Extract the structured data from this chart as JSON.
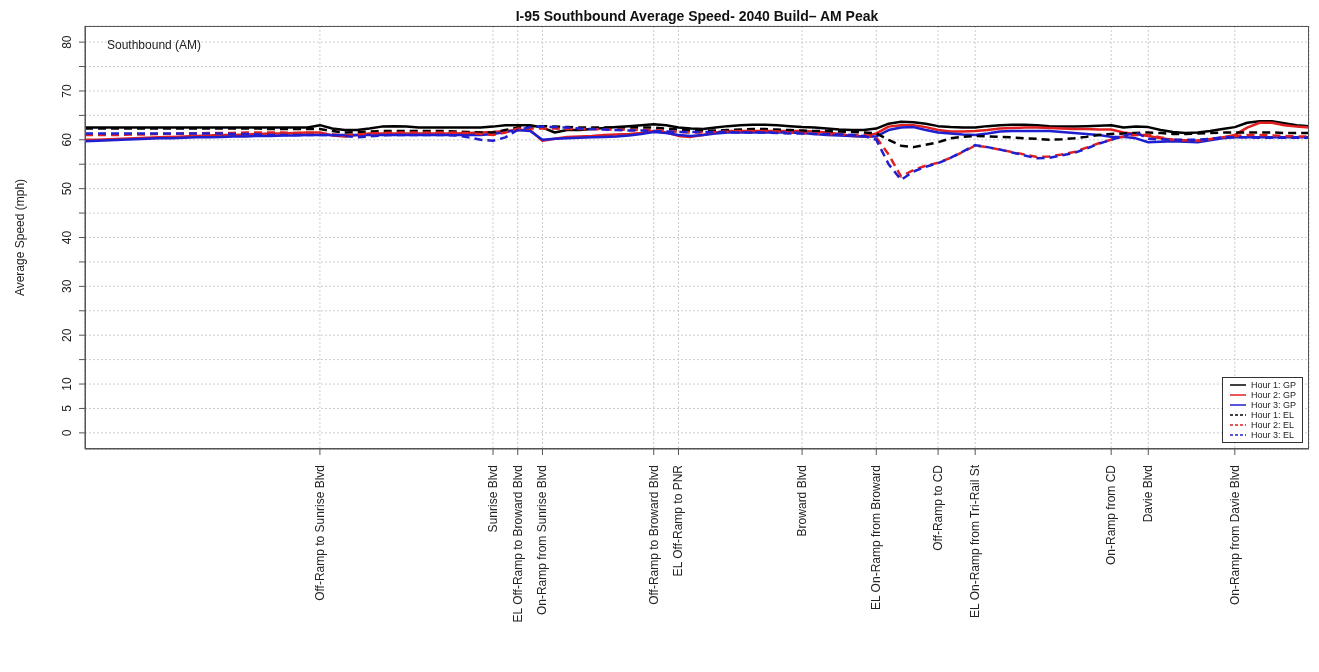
{
  "chart_data": {
    "type": "line",
    "title": "I-95 Southbound Average Speed- 2040 Build– AM Peak",
    "ylabel": "Average Speed (mph)",
    "annotations": [
      "Southbound (AM)"
    ],
    "categories": [
      null,
      null,
      null,
      null,
      null,
      null,
      null,
      null,
      null,
      null,
      null,
      null,
      null,
      null,
      null,
      null,
      null,
      null,
      null,
      "Off-Ramp to Sunrise Blvd",
      null,
      null,
      null,
      null,
      null,
      null,
      null,
      null,
      null,
      null,
      null,
      null,
      null,
      "Sunrise Blvd",
      null,
      "EL Off-Ramp to Broward Blvd",
      null,
      "On-Ramp from Sunrise Blvd",
      null,
      null,
      null,
      null,
      null,
      null,
      null,
      null,
      "Off-Ramp to Broward Blvd",
      null,
      "EL Off-Ramp to PNR",
      null,
      null,
      null,
      null,
      null,
      null,
      null,
      null,
      null,
      "Broward Blvd",
      null,
      null,
      null,
      null,
      null,
      "EL On-Ramp from Broward",
      null,
      null,
      null,
      null,
      "Off-Ramp to CD",
      null,
      null,
      "EL On-Ramp from Tri-Rail St",
      null,
      null,
      null,
      null,
      null,
      null,
      null,
      null,
      null,
      null,
      "On-Ramp from CD",
      null,
      null,
      "Davie Blvd",
      null,
      null,
      null,
      null,
      null,
      null,
      "On-Ramp from Davie Blvd",
      null,
      null,
      null,
      null,
      null,
      null
    ],
    "series": [
      {
        "name": "Hour 1: GP",
        "color": "#000000",
        "line_style": "solid",
        "values": [
          62.5,
          62.5,
          62.5,
          62.5,
          62.5,
          62.5,
          62.5,
          62.5,
          62.5,
          62.5,
          62.5,
          62.5,
          62.5,
          62.5,
          62.5,
          62.5,
          62.5,
          62.5,
          62.5,
          63,
          62.3,
          62,
          62,
          62.3,
          62.7,
          62.8,
          62.7,
          62.5,
          62.5,
          62.5,
          62.5,
          62.5,
          62.5,
          62.7,
          63,
          63,
          63,
          62.5,
          61.5,
          62,
          62,
          62.2,
          62.4,
          62.6,
          62.8,
          63,
          63.2,
          63,
          62.5,
          62.3,
          62.2,
          62.5,
          62.8,
          63,
          63.1,
          63.1,
          63,
          62.8,
          62.6,
          62.5,
          62.3,
          62.1,
          62,
          62,
          62.3,
          63.3,
          63.7,
          63.6,
          63.3,
          62.8,
          62.6,
          62.5,
          62.5,
          62.8,
          63,
          63.1,
          63.1,
          63,
          62.8,
          62.7,
          62.7,
          62.8,
          62.9,
          63,
          62.5,
          62.7,
          62.6,
          62,
          61.6,
          61.4,
          61.5,
          61.8,
          62.2,
          62.6,
          63.5,
          63.8,
          63.8,
          63.4,
          63,
          62.8
        ]
      },
      {
        "name": "Hour 2: GP",
        "color": "#e02020",
        "line_style": "solid",
        "values": [
          60,
          60,
          60.1,
          60.2,
          60.3,
          60.4,
          60.5,
          60.6,
          60.7,
          60.8,
          60.9,
          61,
          61,
          61.1,
          61.2,
          61.3,
          61.3,
          61.4,
          61.5,
          61.5,
          60.9,
          60.7,
          61,
          61.3,
          61.3,
          61.3,
          61.3,
          61.3,
          61.3,
          61.3,
          61.3,
          61.4,
          61.5,
          61.6,
          61.8,
          62,
          62,
          59.8,
          60.2,
          60.6,
          60.7,
          60.8,
          61,
          61.1,
          61.2,
          61.4,
          61.8,
          61.5,
          60.8,
          60.6,
          61,
          61.5,
          61.8,
          61.8,
          61.8,
          61.8,
          61.8,
          61.8,
          61.8,
          61.7,
          61.5,
          61.2,
          60.8,
          60.7,
          61.3,
          62.7,
          63,
          63,
          62.6,
          62,
          61.7,
          61.7,
          61.8,
          62,
          62.3,
          62.4,
          62.5,
          62.5,
          62.4,
          62.3,
          62.2,
          62.2,
          62.1,
          62.1,
          61.5,
          61.2,
          60.8,
          60.3,
          60,
          59.9,
          59.8,
          60.1,
          60.5,
          61,
          62.5,
          63.5,
          63.5,
          63,
          62.7,
          62.5
        ]
      },
      {
        "name": "Hour 3: GP",
        "color": "#1f1fd0",
        "line_style": "solid",
        "values": [
          59.7,
          59.8,
          59.9,
          60,
          60.1,
          60.2,
          60.3,
          60.3,
          60.4,
          60.5,
          60.5,
          60.6,
          60.7,
          60.7,
          60.8,
          60.8,
          60.9,
          60.9,
          61,
          61,
          61,
          61,
          61,
          61,
          61,
          61,
          61,
          61,
          61,
          61,
          61,
          61,
          61,
          61.2,
          61.6,
          62,
          61.8,
          60,
          60.2,
          60.3,
          60.4,
          60.5,
          60.6,
          60.7,
          60.9,
          61.2,
          61.6,
          61.4,
          61,
          60.8,
          61,
          61.3,
          61.5,
          61.5,
          61.5,
          61.5,
          61.5,
          61.5,
          61.4,
          61.2,
          61,
          60.9,
          60.8,
          60.7,
          60.7,
          62,
          62.5,
          62.6,
          62,
          61.5,
          61.3,
          61.1,
          61,
          61.3,
          61.7,
          61.8,
          61.8,
          61.8,
          61.8,
          61.6,
          61.4,
          61.2,
          61,
          60.6,
          60.6,
          60.3,
          59.5,
          59.6,
          59.7,
          59.6,
          59.5,
          59.9,
          60.3,
          60.5,
          60.5,
          60.5,
          60.5,
          60.5,
          60.5,
          60.5
        ]
      },
      {
        "name": "Hour 1: EL",
        "color": "#000000",
        "line_style": "dashed",
        "values": [
          62.3,
          62.3,
          62.3,
          62.3,
          62.3,
          62.3,
          62.3,
          62.3,
          62.3,
          62.3,
          62.3,
          62.3,
          62.3,
          62.3,
          62.3,
          62.2,
          62.2,
          62.2,
          62.2,
          62.2,
          61.8,
          61.5,
          61.6,
          61.7,
          61.8,
          61.8,
          61.8,
          61.8,
          61.8,
          61.8,
          61.7,
          61.6,
          61.5,
          61.5,
          62,
          62.5,
          62.7,
          62.8,
          62.7,
          62.6,
          62.5,
          62.5,
          62.5,
          62.5,
          62.5,
          62.5,
          62.5,
          62.3,
          62.1,
          61.9,
          61.8,
          61.9,
          62,
          62.1,
          62.2,
          62.2,
          62.1,
          62,
          61.9,
          61.8,
          61.8,
          61.7,
          61.6,
          61.5,
          61.3,
          60,
          58.8,
          58.5,
          59,
          59.5,
          60.3,
          60.6,
          60.8,
          60.7,
          60.6,
          60.5,
          60.3,
          60.2,
          60,
          60.1,
          60.3,
          60.6,
          61,
          61.2,
          61.3,
          61.4,
          61.5,
          61.4,
          61.2,
          61.2,
          61.3,
          61.4,
          61.5,
          61.5,
          61.5,
          61.5,
          61.5,
          61.4,
          61.4,
          61.4
        ]
      },
      {
        "name": "Hour 2: EL",
        "color": "#e02020",
        "line_style": "dashed",
        "values": [
          61,
          61,
          61,
          61,
          61.1,
          61.1,
          61.2,
          61.2,
          61.3,
          61.3,
          61.4,
          61.4,
          61.4,
          61.5,
          61.5,
          61.5,
          61.5,
          61.4,
          61.4,
          61.3,
          61.1,
          60.9,
          61.1,
          61.3,
          61.4,
          61.5,
          61.5,
          61.5,
          61.5,
          61.5,
          61.5,
          61.4,
          61.2,
          61,
          61.5,
          62.3,
          62.3,
          62.3,
          62.3,
          62.2,
          62.2,
          62.2,
          62.1,
          62.1,
          62,
          62,
          62,
          61.8,
          61.6,
          61.5,
          61.5,
          61.6,
          61.7,
          61.8,
          61.8,
          61.8,
          61.7,
          61.5,
          61.4,
          61.3,
          61.2,
          61.1,
          61,
          61,
          60.5,
          57,
          52.5,
          53.8,
          54.7,
          55.3,
          56.3,
          57.5,
          58.8,
          58.5,
          58,
          57.5,
          57,
          56.5,
          56.6,
          57,
          57.5,
          58.4,
          59.3,
          60,
          60.7,
          61,
          61,
          60.5,
          60,
          59.9,
          59.8,
          60.1,
          60.5,
          60.8,
          61,
          61,
          60.9,
          60.8,
          60.7,
          60.7
        ]
      },
      {
        "name": "Hour 3: EL",
        "color": "#1f1fd0",
        "line_style": "dashed",
        "values": [
          61.3,
          61.3,
          61.3,
          61.3,
          61.3,
          61.3,
          61.3,
          61.3,
          61.3,
          61.3,
          61.3,
          61.3,
          61.2,
          61.2,
          61.1,
          61,
          61,
          61,
          61,
          61,
          61,
          60.8,
          60.5,
          60.7,
          60.9,
          61,
          61,
          61,
          61,
          61,
          60.9,
          60.5,
          60,
          59.8,
          60.5,
          62,
          62.6,
          62.7,
          62.6,
          62.5,
          62.3,
          62.2,
          62.1,
          62,
          61.9,
          61.9,
          61.8,
          61.7,
          61.6,
          61.6,
          61.6,
          61.6,
          61.6,
          61.5,
          61.5,
          61.5,
          61.4,
          61.3,
          61.3,
          61.2,
          61.2,
          61.1,
          61,
          60.8,
          60,
          55,
          51.8,
          53.5,
          54.5,
          55.2,
          56.3,
          57.6,
          58.9,
          58.5,
          58,
          57.4,
          56.8,
          56.2,
          56.3,
          56.8,
          57.3,
          58.2,
          59.2,
          60,
          60.8,
          61.5,
          60.2,
          60.1,
          60,
          60,
          60,
          60.2,
          60.5,
          60.5,
          60.5,
          60.4,
          60.4,
          60.4,
          60.4,
          60.4
        ]
      }
    ],
    "ylim": [
      -3.3,
      83.3
    ],
    "yticks": [
      0,
      5,
      10,
      {
        "value": 15,
        "label": null
      },
      20,
      {
        "value": 25,
        "label": null
      },
      30,
      {
        "value": 35,
        "label": null
      },
      40,
      {
        "value": 45,
        "label": null
      },
      50,
      {
        "value": 55,
        "label": null
      },
      60,
      {
        "value": 65,
        "label": null
      },
      70,
      {
        "value": 75,
        "label": null
      },
      80
    ],
    "grid": true,
    "legend": "bottom right",
    "marker": "none"
  }
}
